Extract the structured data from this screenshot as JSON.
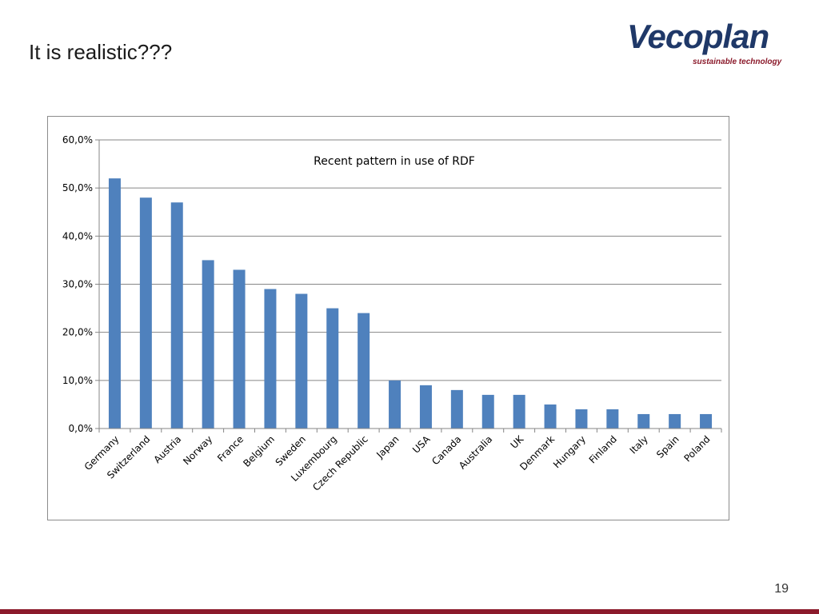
{
  "slide": {
    "title": "It is realistic???",
    "page_number": "19"
  },
  "logo": {
    "wordmark": "Vecoplan",
    "tagline": "sustainable technology"
  },
  "colors": {
    "bar": "#4f81bd",
    "brand_blue": "#1f3868",
    "brand_red": "#8b1a2b",
    "gridline": "#868686"
  },
  "chart_data": {
    "type": "bar",
    "title": "Recent pattern in use of RDF",
    "xlabel": "",
    "ylabel": "",
    "categories": [
      "Germany",
      "Switzerland",
      "Austria",
      "Norway",
      "France",
      "Belgium",
      "Sweden",
      "Luxembourg",
      "Czech Republic",
      "Japan",
      "USA",
      "Canada",
      "Australia",
      "UK",
      "Denmark",
      "Hungary",
      "Finland",
      "Italy",
      "Spain",
      "Poland"
    ],
    "values": [
      52,
      48,
      47,
      35,
      33,
      29,
      28,
      25,
      24,
      10,
      9,
      8,
      7,
      7,
      5,
      4,
      4,
      3,
      3,
      3
    ],
    "ylim": [
      0,
      60
    ],
    "yticks": [
      0,
      10,
      20,
      30,
      40,
      50,
      60
    ],
    "ytick_labels": [
      "0,0%",
      "10,0%",
      "20,0%",
      "30,0%",
      "40,0%",
      "50,0%",
      "60,0%"
    ],
    "grid": true,
    "legend": "none"
  }
}
